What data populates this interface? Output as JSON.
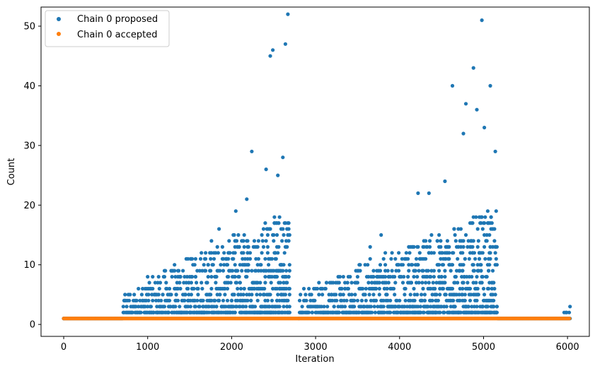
{
  "chart_data": {
    "type": "scatter",
    "title": "",
    "xlabel": "Iteration",
    "ylabel": "Count",
    "xlim": [
      -270,
      6260
    ],
    "ylim": [
      -2,
      53.2
    ],
    "xticks": [
      0,
      1000,
      2000,
      3000,
      4000,
      5000,
      6000
    ],
    "yticks": [
      0,
      10,
      20,
      30,
      40,
      50
    ],
    "grid": false,
    "legend_position": "top-left",
    "series": [
      {
        "name": "Chain 0 proposed",
        "color": "#1f77b4",
        "marker": "circle",
        "description_points": [
          {
            "x": 0,
            "y": 1
          },
          {
            "x": 720,
            "y": 2
          },
          {
            "x": 850,
            "y": 4
          },
          {
            "x": 1120,
            "y": 7
          },
          {
            "x": 1500,
            "y": 8
          },
          {
            "x": 1640,
            "y": 12
          },
          {
            "x": 1760,
            "y": 14
          },
          {
            "x": 1850,
            "y": 16
          },
          {
            "x": 2050,
            "y": 19
          },
          {
            "x": 2180,
            "y": 21
          },
          {
            "x": 2240,
            "y": 29
          },
          {
            "x": 2410,
            "y": 26
          },
          {
            "x": 2460,
            "y": 45
          },
          {
            "x": 2490,
            "y": 46
          },
          {
            "x": 2550,
            "y": 25
          },
          {
            "x": 2610,
            "y": 28
          },
          {
            "x": 2640,
            "y": 47
          },
          {
            "x": 2670,
            "y": 52
          },
          {
            "x": 3650,
            "y": 13
          },
          {
            "x": 3780,
            "y": 15
          },
          {
            "x": 4220,
            "y": 22
          },
          {
            "x": 4350,
            "y": 22
          },
          {
            "x": 4540,
            "y": 24
          },
          {
            "x": 4630,
            "y": 40
          },
          {
            "x": 4760,
            "y": 32
          },
          {
            "x": 4790,
            "y": 37
          },
          {
            "x": 4880,
            "y": 43
          },
          {
            "x": 4920,
            "y": 36
          },
          {
            "x": 4980,
            "y": 51
          },
          {
            "x": 5010,
            "y": 33
          },
          {
            "x": 5080,
            "y": 40
          },
          {
            "x": 5140,
            "y": 29
          },
          {
            "x": 5990,
            "y": 2
          },
          {
            "x": 6030,
            "y": 3
          }
        ]
      },
      {
        "name": "Chain 0 accepted",
        "color": "#ff7f0e",
        "marker": "circle",
        "value_all_iterations": 1,
        "x_range": [
          0,
          6030
        ]
      }
    ],
    "structure_note": "Proposed counts are 1 until ~700, then form two growing clusters (~700-2700 and ~2800-5150) with values mostly 2-15 and sparse outliers up to 52; returns to 1 after ~5150 with a few 2-3 near 6000. Accepted count is 1 at every iteration."
  }
}
